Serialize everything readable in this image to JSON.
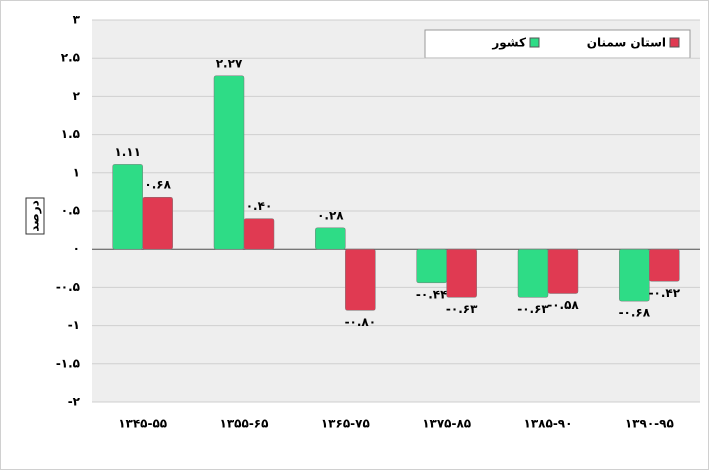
{
  "chart_data": {
    "type": "bar",
    "y_label": "درصد",
    "categories": [
      "۱۳۴۵-۵۵",
      "۱۳۵۵-۶۵",
      "۱۳۶۵-۷۵",
      "۱۳۷۵-۸۵",
      "۱۳۸۵-۹۰",
      "۱۳۹۰-۹۵"
    ],
    "series": [
      {
        "name": "کشور",
        "color": "#2edc86",
        "values": [
          1.11,
          2.27,
          0.28,
          -0.44,
          -0.63,
          -0.68
        ],
        "value_labels": [
          "۱.۱۱",
          "۲.۲۷",
          "۰.۲۸",
          "-۰.۴۴",
          "-۰.۶۳",
          "-۰.۶۸"
        ]
      },
      {
        "name": "استان سمنان",
        "color": "#e03a52",
        "values": [
          0.68,
          0.4,
          -0.8,
          -0.63,
          -0.58,
          -0.42
        ],
        "value_labels": [
          "۰.۶۸",
          "۰.۴۰",
          "-۰.۸۰",
          "-۰.۶۳",
          "-۰.۵۸",
          "-۰.۴۲"
        ]
      }
    ],
    "ylim": [
      -2,
      3
    ],
    "yticks": [
      {
        "value": -2,
        "label": "-۲"
      },
      {
        "value": -1.5,
        "label": "-۱.۵"
      },
      {
        "value": -1,
        "label": "-۱"
      },
      {
        "value": -0.5,
        "label": "-۰.۵"
      },
      {
        "value": 0,
        "label": "۰"
      },
      {
        "value": 0.5,
        "label": "۰.۵"
      },
      {
        "value": 1,
        "label": "۱"
      },
      {
        "value": 1.5,
        "label": "۱.۵"
      },
      {
        "value": 2,
        "label": "۲"
      },
      {
        "value": 2.5,
        "label": "۲.۵"
      },
      {
        "value": 3,
        "label": "۳"
      }
    ],
    "grid": true,
    "legend": "top-right"
  }
}
